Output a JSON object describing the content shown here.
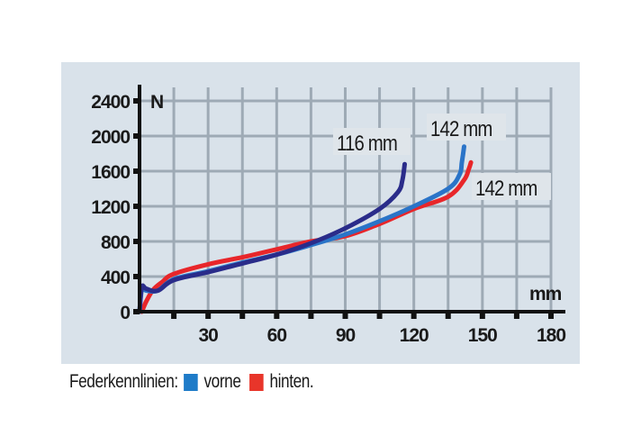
{
  "chart_data": {
    "type": "line",
    "title": "",
    "xlabel": "mm",
    "ylabel": "N",
    "xlim": [
      0,
      180
    ],
    "ylim": [
      0,
      2400
    ],
    "x_ticks": [
      30,
      60,
      90,
      120,
      150,
      180
    ],
    "x_gridlines": [
      15,
      30,
      45,
      60,
      75,
      90,
      105,
      120,
      135,
      150,
      165,
      180
    ],
    "y_ticks": [
      0,
      400,
      800,
      1200,
      1600,
      2000,
      2400
    ],
    "x_tick_labels": [
      "30",
      "60",
      "90",
      "120",
      "150",
      "180"
    ],
    "y_tick_labels": [
      "0",
      "400",
      "800",
      "1200",
      "1600",
      "2000",
      "2400"
    ],
    "grid": true,
    "background": "#d9e2ea",
    "grid_color": "#9eaab5",
    "series": [
      {
        "name": "vorne (116 mm)",
        "color": "#2a2c8a",
        "x": [
          0,
          1,
          3,
          8,
          15,
          30,
          45,
          60,
          75,
          90,
          105,
          113,
          115,
          116
        ],
        "y": [
          0,
          280,
          260,
          240,
          360,
          450,
          550,
          650,
          780,
          950,
          1170,
          1360,
          1500,
          1680
        ]
      },
      {
        "name": "vorne (142 mm)",
        "color": "#2a74c8",
        "x": [
          0,
          1,
          3,
          8,
          15,
          30,
          45,
          60,
          75,
          90,
          105,
          120,
          135,
          140,
          141,
          142
        ],
        "y": [
          0,
          250,
          240,
          240,
          370,
          460,
          560,
          650,
          760,
          880,
          1030,
          1200,
          1400,
          1560,
          1700,
          1880
        ]
      },
      {
        "name": "hinten (142 mm)",
        "color": "#e8262a",
        "x": [
          1,
          3,
          6,
          10,
          15,
          30,
          45,
          60,
          75,
          90,
          105,
          120,
          135,
          142,
          144,
          145
        ],
        "y": [
          0,
          120,
          250,
          340,
          430,
          540,
          620,
          710,
          800,
          860,
          1000,
          1170,
          1310,
          1500,
          1620,
          1700
        ]
      }
    ],
    "annotations": [
      {
        "text": "116 mm",
        "x": 116,
        "y": 1930
      },
      {
        "text": "142 mm",
        "x": 142,
        "y": 2070
      },
      {
        "text": "142 mm",
        "x": 150,
        "y": 1400
      }
    ],
    "legend": {
      "position": "bottom-left",
      "title": "Federkennlinien:",
      "entries": [
        {
          "label": "vorne",
          "color": "#1e7bc8"
        },
        {
          "label": "hinten.",
          "color": "#e8352a"
        }
      ]
    }
  },
  "axis": {
    "y_unit": "N",
    "x_unit": "mm"
  },
  "legend": {
    "title": "Federkennlinien:",
    "vorne_label": "vorne",
    "vorne_color": "#1e7bc8",
    "hinten_label": "hinten.",
    "hinten_color": "#e8352a"
  }
}
